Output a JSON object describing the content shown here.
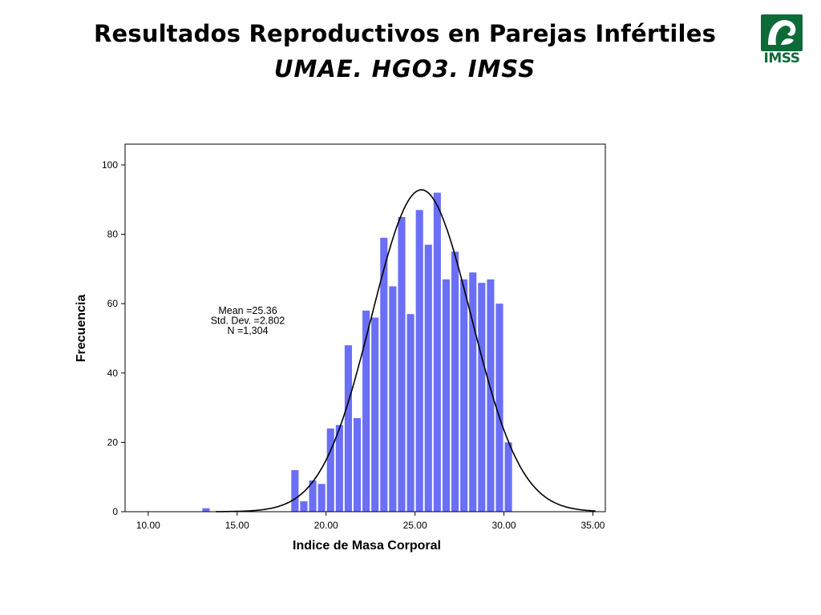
{
  "slide": {
    "title": "Resultados Reproductivos en Parejas Infértiles",
    "subtitle": "UMAE. HGO3. IMSS",
    "logo_text": "IMSS"
  },
  "chart_data": {
    "type": "bar",
    "subtype": "histogram",
    "xlabel": "Indice de Masa Corporal",
    "ylabel": "Frecuencia",
    "xlim": [
      8.7,
      35.7
    ],
    "ylim": [
      0,
      106
    ],
    "x_ticks": [
      10,
      15,
      20,
      25,
      30,
      35
    ],
    "x_tick_labels": [
      "10.00",
      "15.00",
      "20.00",
      "25.00",
      "30.00",
      "35.00"
    ],
    "y_ticks": [
      0,
      20,
      40,
      60,
      80,
      100
    ],
    "y_tick_labels": [
      "0",
      "20",
      "40",
      "60",
      "80",
      "100"
    ],
    "bin_width": 0.5,
    "bars": [
      {
        "x": 13.25,
        "value": 1
      },
      {
        "x": 18.25,
        "value": 12
      },
      {
        "x": 18.75,
        "value": 3
      },
      {
        "x": 19.25,
        "value": 9
      },
      {
        "x": 19.75,
        "value": 8
      },
      {
        "x": 20.25,
        "value": 24
      },
      {
        "x": 20.75,
        "value": 25
      },
      {
        "x": 21.25,
        "value": 48
      },
      {
        "x": 21.75,
        "value": 27
      },
      {
        "x": 22.25,
        "value": 58
      },
      {
        "x": 22.75,
        "value": 56
      },
      {
        "x": 23.25,
        "value": 79
      },
      {
        "x": 23.75,
        "value": 65
      },
      {
        "x": 24.25,
        "value": 85
      },
      {
        "x": 24.75,
        "value": 57
      },
      {
        "x": 25.25,
        "value": 87
      },
      {
        "x": 25.75,
        "value": 77
      },
      {
        "x": 26.25,
        "value": 92
      },
      {
        "x": 26.75,
        "value": 67
      },
      {
        "x": 27.25,
        "value": 75
      },
      {
        "x": 27.75,
        "value": 67
      },
      {
        "x": 28.25,
        "value": 69
      },
      {
        "x": 28.75,
        "value": 66
      },
      {
        "x": 29.25,
        "value": 67
      },
      {
        "x": 29.75,
        "value": 60
      },
      {
        "x": 30.25,
        "value": 20
      }
    ],
    "normal_curve": {
      "mean": 25.36,
      "std_dev": 2.802,
      "n": 1304
    },
    "annotation": [
      "Mean =25.36",
      "Std. Dev. =2.802",
      "N =1,304"
    ],
    "bar_color": "#6a6ff5",
    "curve_color": "#000000",
    "grid": false,
    "legend": "none"
  }
}
